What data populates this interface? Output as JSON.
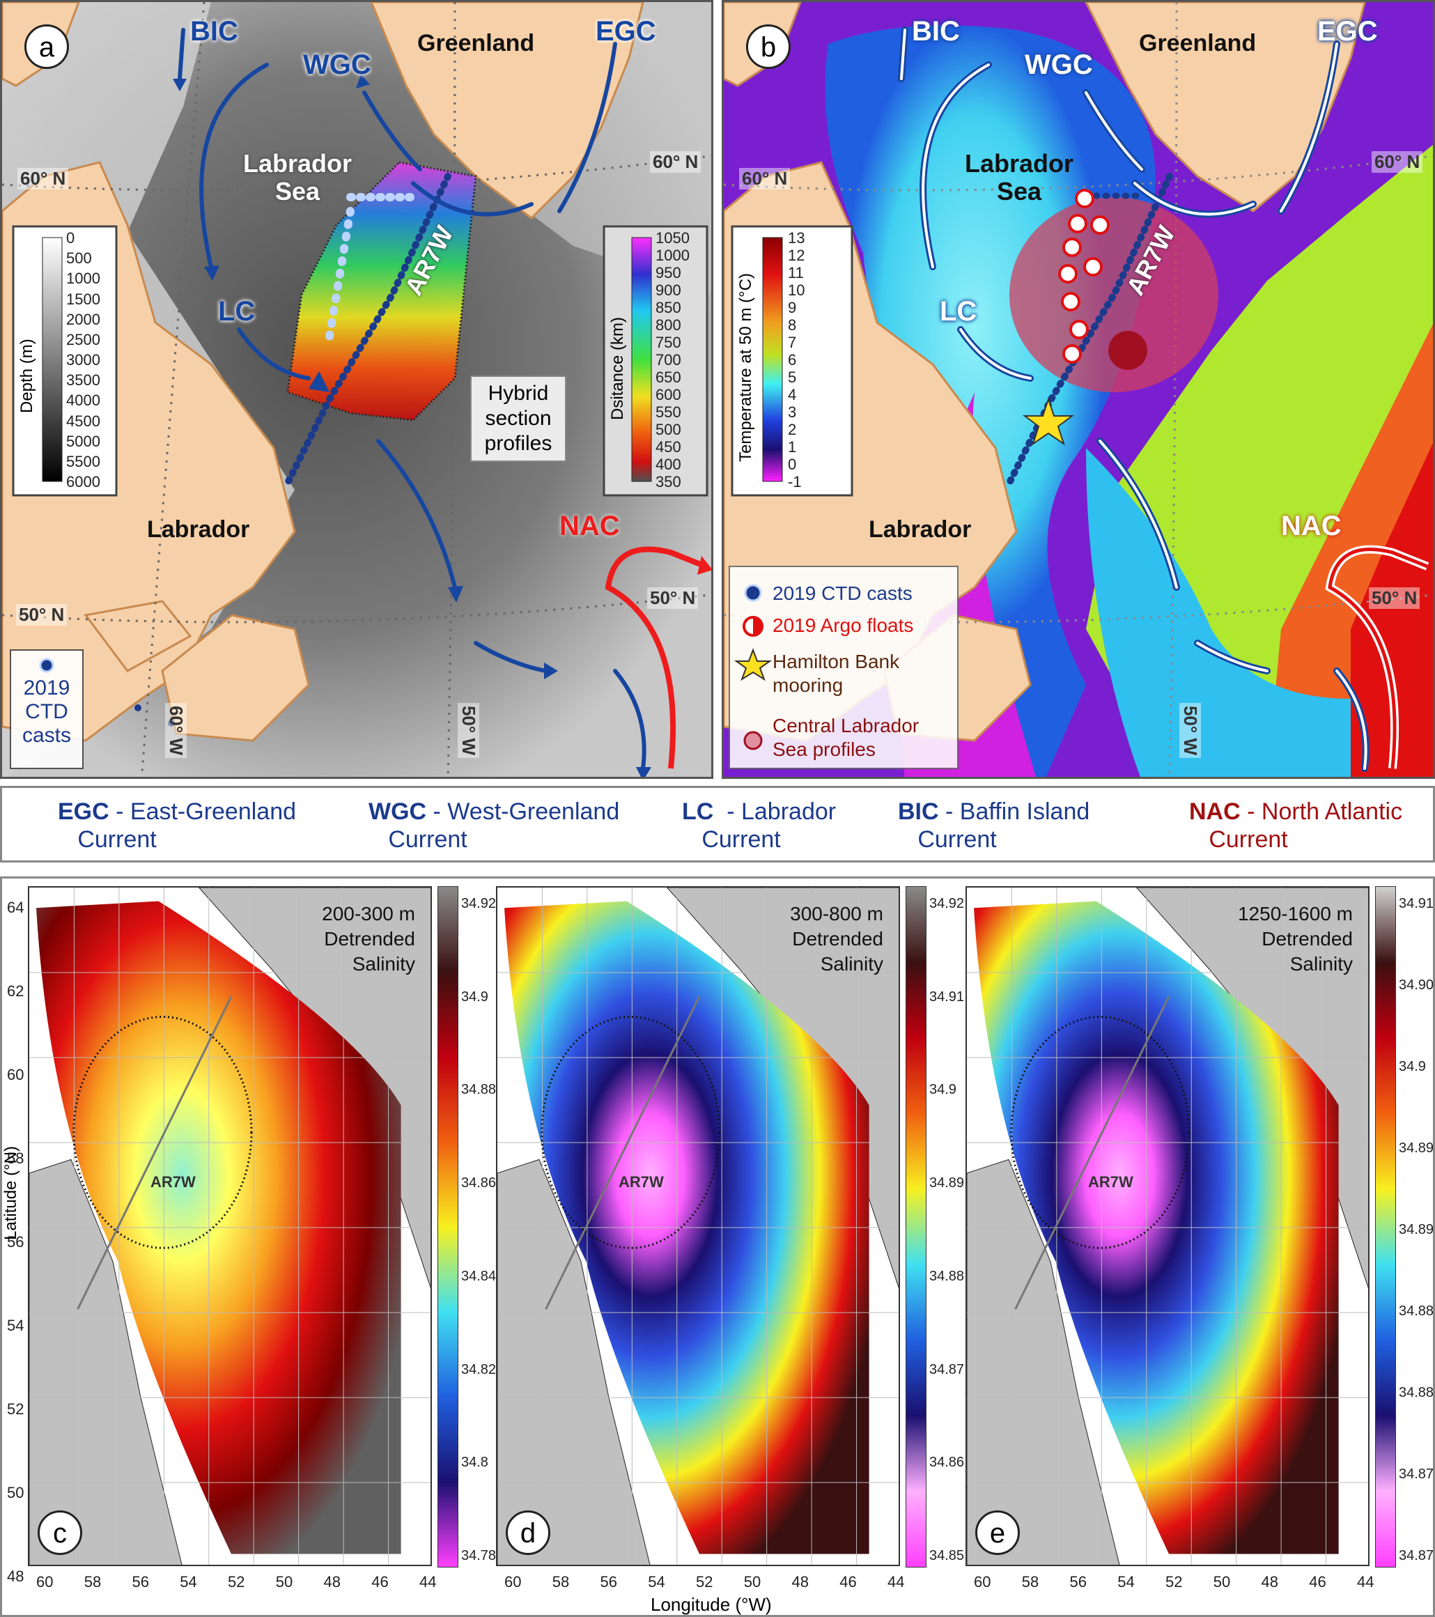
{
  "panel_a": {
    "label": "a",
    "currents": {
      "bic": "BIC",
      "wgc": "WGC",
      "egc": "EGC",
      "lc": "LC",
      "nac": "NAC"
    },
    "regions": {
      "greenland": "Greenland",
      "sea": "Labrador\nSea",
      "labrador": "Labrador"
    },
    "graticule": {
      "lat60": "60° N",
      "lat60r": "60° N",
      "lat50": "50° N",
      "lat50r": "50° N",
      "lon60": "60° W",
      "lon50": "50° W"
    },
    "section": "AR7W",
    "hybrid_note": "Hybrid\nsection\nprofiles",
    "ctd_legend": "2019\nCTD\ncasts",
    "depth_bar": {
      "title": "Depth (m)",
      "ticks": [
        "0",
        "500",
        "1000",
        "1500",
        "2000",
        "2500",
        "3000",
        "3500",
        "4000",
        "4500",
        "5000",
        "5500",
        "6000"
      ]
    },
    "distance_bar": {
      "title": "Dsitance (km)",
      "ticks": [
        "1050",
        "1000",
        "950",
        "900",
        "850",
        "800",
        "750",
        "700",
        "650",
        "600",
        "550",
        "500",
        "450",
        "400",
        "350"
      ]
    }
  },
  "panel_b": {
    "label": "b",
    "currents": {
      "bic": "BIC",
      "wgc": "WGC",
      "egc": "EGC",
      "lc": "LC",
      "nac": "NAC"
    },
    "regions": {
      "greenland": "Greenland",
      "sea": "Labrador\nSea",
      "labrador": "Labrador"
    },
    "graticule": {
      "lat60": "60° N",
      "lat60r": "60° N",
      "lat50": "50° N",
      "lon50": "50° W"
    },
    "section": "AR7W",
    "temp_bar": {
      "title": "Temperature at 50 m (°C)",
      "ticks": [
        "13",
        "12",
        "11",
        "10",
        "9",
        "8",
        "7",
        "6",
        "5",
        "4",
        "3",
        "2",
        "1",
        "0",
        "-1"
      ]
    },
    "legend": [
      {
        "icon": "ctd-dot",
        "text": "2019 CTD casts",
        "color": "#1b3a8c"
      },
      {
        "icon": "argo-half-circle",
        "text": "2019 Argo floats",
        "color": "#e01010"
      },
      {
        "icon": "star",
        "text": "Hamilton Bank\nmooring",
        "color": "#5a2a10"
      },
      {
        "icon": "pink-dot",
        "text": "Central Labrador\nSea profiles",
        "color": "#8a1010"
      }
    ]
  },
  "definitions": [
    {
      "abbr": "EGC",
      "text": " - East-Greenland\n   Current",
      "color": "#1b3a8c"
    },
    {
      "abbr": "WGC",
      "text": " - West-Greenland\n   Current",
      "color": "#1b3a8c"
    },
    {
      "abbr": "LC",
      "text": "  - Labrador\n   Current",
      "color": "#1b3a8c"
    },
    {
      "abbr": "BIC",
      "text": " - Baffin Island\n   Current",
      "color": "#1b3a8c"
    },
    {
      "abbr": "NAC",
      "text": " - North Atlantic\n   Current",
      "color": "#a01010"
    }
  ],
  "salinity_panels": [
    {
      "label": "c",
      "title": "200-300 m\nDetrended\nSalinity",
      "cbar": [
        "34.92",
        "34.9",
        "34.88",
        "34.86",
        "34.84",
        "34.82",
        "34.8",
        "34.78"
      ]
    },
    {
      "label": "d",
      "title": "300-800 m\nDetrended\nSalinity",
      "cbar": [
        "34.92",
        "34.91",
        "34.9",
        "34.89",
        "34.88",
        "34.87",
        "34.86",
        "34.85"
      ]
    },
    {
      "label": "e",
      "title": "1250-1600 m\nDetrended\nSalinity",
      "cbar": [
        "34.91",
        "34.90",
        "34.9",
        "34.89",
        "34.89",
        "34.88",
        "34.88",
        "34.87",
        "34.87"
      ]
    }
  ],
  "axes": {
    "ylabel": "Latitude (°N)",
    "xlabel": "Longitude (°W)",
    "yticks": [
      "64",
      "62",
      "60",
      "58",
      "56",
      "54",
      "52",
      "50",
      "48"
    ],
    "xticks": [
      "60",
      "58",
      "56",
      "54",
      "52",
      "50",
      "48",
      "46",
      "44"
    ],
    "section": "AR7W"
  }
}
